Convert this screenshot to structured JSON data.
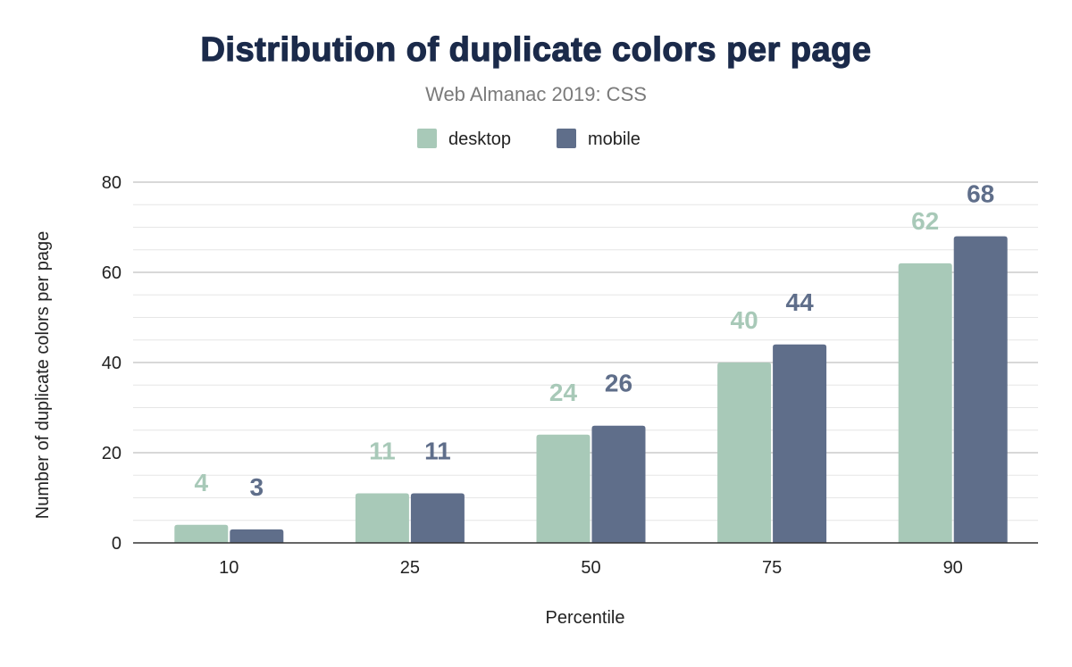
{
  "chart_data": {
    "type": "bar",
    "title": "Distribution of duplicate colors per page",
    "subtitle": "Web Almanac 2019: CSS",
    "xlabel": "Percentile",
    "ylabel": "Number of duplicate colors per page",
    "categories": [
      "10",
      "25",
      "50",
      "75",
      "90"
    ],
    "series": [
      {
        "name": "desktop",
        "color": "#a8c9b8",
        "values": [
          4,
          11,
          24,
          40,
          62
        ]
      },
      {
        "name": "mobile",
        "color": "#5f6e8a",
        "values": [
          3,
          11,
          26,
          44,
          68
        ]
      }
    ],
    "ylim": [
      0,
      80
    ],
    "yticks": [
      "0",
      "20",
      "40",
      "60",
      "80"
    ],
    "minor_grid_step": 5,
    "grid": true,
    "legend_position": "top",
    "data_labels": true,
    "colors": {
      "title": "#1b2a4a",
      "subtitle": "#7a7a7a",
      "text": "#222222"
    }
  }
}
